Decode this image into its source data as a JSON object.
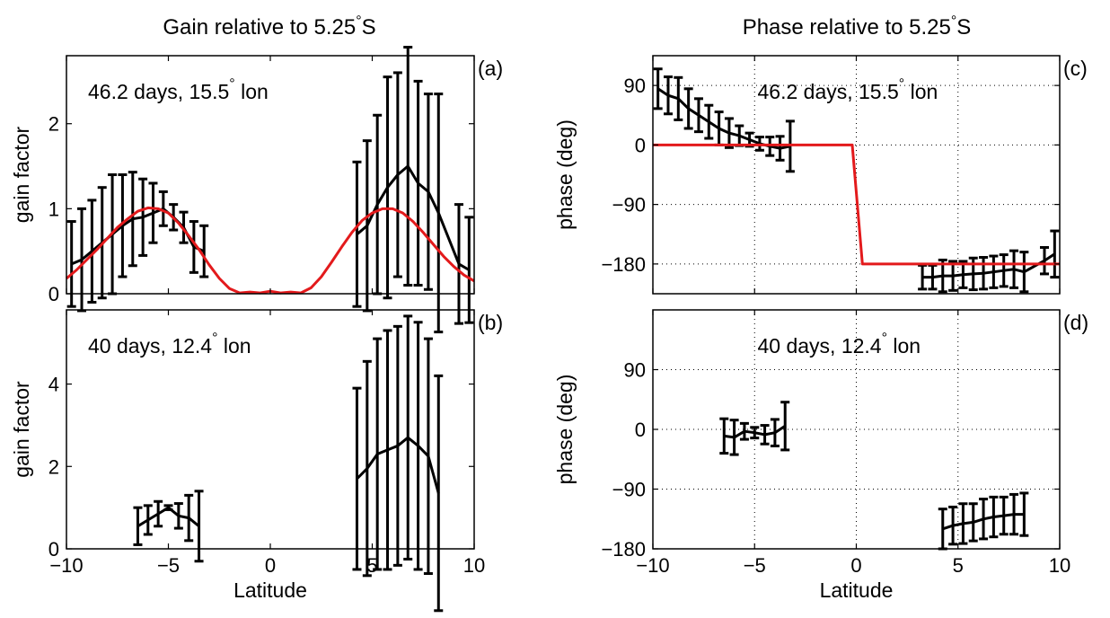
{
  "titles": {
    "gain": {
      "text": "Gain relative to 5.25",
      "suffix": "S"
    },
    "phase": {
      "text": "Phase relative to 5.25",
      "suffix": "S"
    }
  },
  "chart_data": [
    {
      "id": "a",
      "type": "line",
      "panel_label": "(a)",
      "annotation": {
        "text1": "46.2 days, 15.5",
        "text2": " lon"
      },
      "xlabel": "",
      "ylabel": "gain factor",
      "xlim": [
        -10,
        10
      ],
      "ylim": [
        0,
        2.8
      ],
      "xticks": [
        -10,
        -5,
        0,
        5,
        10
      ],
      "xticklabels": [],
      "yticks": [
        0,
        1,
        2
      ],
      "yticklabels": [
        "0",
        "1",
        "2"
      ],
      "grid": false,
      "series": [
        {
          "kind": "errorbar",
          "color": "#000000",
          "x": [
            -9.75,
            -9.25,
            -8.75,
            -8.25,
            -7.75,
            -7.25,
            -6.75,
            -6.25,
            -5.75,
            -5.25,
            -4.75,
            -4.25,
            -3.75,
            -3.25,
            4.25,
            4.75,
            5.25,
            5.75,
            6.25,
            6.75,
            7.25,
            7.75,
            8.25,
            9.25,
            9.75
          ],
          "y": [
            0.35,
            0.4,
            0.5,
            0.6,
            0.7,
            0.8,
            0.88,
            0.9,
            0.95,
            1.0,
            0.9,
            0.78,
            0.55,
            0.5,
            0.7,
            0.8,
            1.05,
            1.25,
            1.4,
            1.5,
            1.3,
            1.2,
            0.95,
            0.35,
            0.28
          ],
          "err": [
            0.5,
            0.6,
            0.6,
            0.65,
            0.7,
            0.6,
            0.55,
            0.45,
            0.35,
            0.2,
            0.15,
            0.18,
            0.3,
            0.3,
            0.85,
            1.0,
            1.05,
            1.3,
            1.2,
            1.4,
            1.2,
            1.15,
            1.4,
            0.7,
            0.62
          ]
        },
        {
          "kind": "line",
          "color": "#e31a1c",
          "x": [
            -10,
            -9.5,
            -9,
            -8.5,
            -8,
            -7.5,
            -7,
            -6.5,
            -6,
            -5.5,
            -5,
            -4.5,
            -4,
            -3.5,
            -3,
            -2.5,
            -2,
            -1.5,
            -1,
            -0.5,
            0,
            0.5,
            1,
            1.5,
            2,
            2.5,
            3,
            3.5,
            4,
            4.5,
            5,
            5.5,
            6,
            6.5,
            7,
            7.5,
            8,
            8.5,
            9,
            9.5,
            10
          ],
          "y": [
            0.18,
            0.28,
            0.4,
            0.52,
            0.65,
            0.78,
            0.88,
            0.97,
            1.01,
            1.0,
            0.95,
            0.83,
            0.68,
            0.52,
            0.34,
            0.18,
            0.06,
            0.01,
            0.02,
            0.01,
            0.03,
            0.01,
            0.02,
            0.01,
            0.07,
            0.2,
            0.37,
            0.55,
            0.72,
            0.86,
            0.95,
            1.0,
            1.0,
            0.95,
            0.85,
            0.72,
            0.58,
            0.44,
            0.32,
            0.22,
            0.15
          ]
        }
      ]
    },
    {
      "id": "b",
      "type": "line",
      "panel_label": "(b)",
      "annotation": {
        "text1": "40 days, 12.4",
        "text2": " lon"
      },
      "xlabel": "Latitude",
      "ylabel": "gain factor",
      "xlim": [
        -10,
        10
      ],
      "ylim": [
        0,
        5.8
      ],
      "xticks": [
        -10,
        -5,
        0,
        5,
        10
      ],
      "xticklabels": [
        "−10",
        "−5",
        "0",
        "5",
        "10"
      ],
      "yticks": [
        0,
        2,
        4
      ],
      "yticklabels": [
        "0",
        "2",
        "4"
      ],
      "grid": false,
      "series": [
        {
          "kind": "errorbar",
          "color": "#000000",
          "x": [
            -6.5,
            -6.0,
            -5.5,
            -5.0,
            -4.5,
            -4.0,
            -3.5,
            4.25,
            4.75,
            5.25,
            5.75,
            6.25,
            6.75,
            7.25,
            7.75,
            8.25
          ],
          "y": [
            0.55,
            0.7,
            0.85,
            1.0,
            0.8,
            0.75,
            0.55,
            1.7,
            1.95,
            2.3,
            2.4,
            2.5,
            2.7,
            2.5,
            2.25,
            1.35
          ],
          "err": [
            0.45,
            0.35,
            0.3,
            0.05,
            0.3,
            0.55,
            0.85,
            2.2,
            2.6,
            2.8,
            2.9,
            2.9,
            2.95,
            3.0,
            2.85,
            2.85
          ]
        }
      ]
    },
    {
      "id": "c",
      "type": "line",
      "panel_label": "(c)",
      "annotation": {
        "text1": "46.2 days, 15.5",
        "text2": " lon"
      },
      "xlabel": "",
      "ylabel": "phase (deg)",
      "xlim": [
        -10,
        10
      ],
      "ylim": [
        -225,
        135
      ],
      "xticks": [
        -10,
        -5,
        0,
        5,
        10
      ],
      "xticklabels": [],
      "yticks": [
        90,
        0,
        -90,
        -180
      ],
      "yticklabels": [
        "90",
        "0",
        "−90",
        "−180"
      ],
      "grid": true,
      "series": [
        {
          "kind": "errorbar",
          "color": "#000000",
          "x": [
            -9.75,
            -9.25,
            -8.75,
            -8.25,
            -7.75,
            -7.25,
            -6.75,
            -6.25,
            -5.75,
            -5.25,
            -4.75,
            -4.25,
            -3.75,
            -3.25,
            3.25,
            3.75,
            4.25,
            4.75,
            5.25,
            5.75,
            6.25,
            6.75,
            7.25,
            7.75,
            8.25,
            9.25,
            9.75
          ],
          "y": [
            85,
            75,
            70,
            55,
            45,
            35,
            25,
            18,
            14,
            8,
            2,
            -2,
            -5,
            -2,
            -200,
            -200,
            -198,
            -198,
            -196,
            -195,
            -194,
            -192,
            -190,
            -188,
            -192,
            -175,
            -165
          ],
          "err": [
            30,
            28,
            32,
            30,
            25,
            25,
            25,
            22,
            15,
            10,
            10,
            14,
            18,
            38,
            18,
            18,
            24,
            22,
            20,
            24,
            24,
            24,
            24,
            28,
            30,
            20,
            35
          ]
        },
        {
          "kind": "line",
          "color": "#e31a1c",
          "x": [
            -10,
            -0.2,
            0.3,
            10
          ],
          "y": [
            0,
            0,
            -180,
            -180
          ]
        }
      ]
    },
    {
      "id": "d",
      "type": "line",
      "panel_label": "(d)",
      "annotation": {
        "text1": "40 days, 12.4",
        "text2": " lon"
      },
      "xlabel": "Latitude",
      "ylabel": "phase (deg)",
      "xlim": [
        -10,
        10
      ],
      "ylim": [
        -180,
        180
      ],
      "xticks": [
        -10,
        -5,
        0,
        5,
        10
      ],
      "xticklabels": [
        "−10",
        "−5",
        "0",
        "5",
        "10"
      ],
      "yticks": [
        90,
        0,
        -90,
        -180
      ],
      "yticklabels": [
        "90",
        "0",
        "−90",
        "−180"
      ],
      "grid": true,
      "series": [
        {
          "kind": "errorbar",
          "color": "#000000",
          "x": [
            -6.5,
            -6.0,
            -5.5,
            -5.0,
            -4.5,
            -4.0,
            -3.5,
            4.25,
            4.75,
            5.25,
            5.75,
            6.25,
            6.75,
            7.25,
            7.75,
            8.25
          ],
          "y": [
            -10,
            -12,
            -3,
            -5,
            -8,
            -5,
            5,
            -150,
            -145,
            -142,
            -140,
            -135,
            -132,
            -130,
            -128,
            -128
          ],
          "err": [
            26,
            26,
            12,
            8,
            14,
            20,
            36,
            30,
            28,
            30,
            28,
            30,
            30,
            28,
            30,
            32
          ]
        }
      ]
    }
  ]
}
